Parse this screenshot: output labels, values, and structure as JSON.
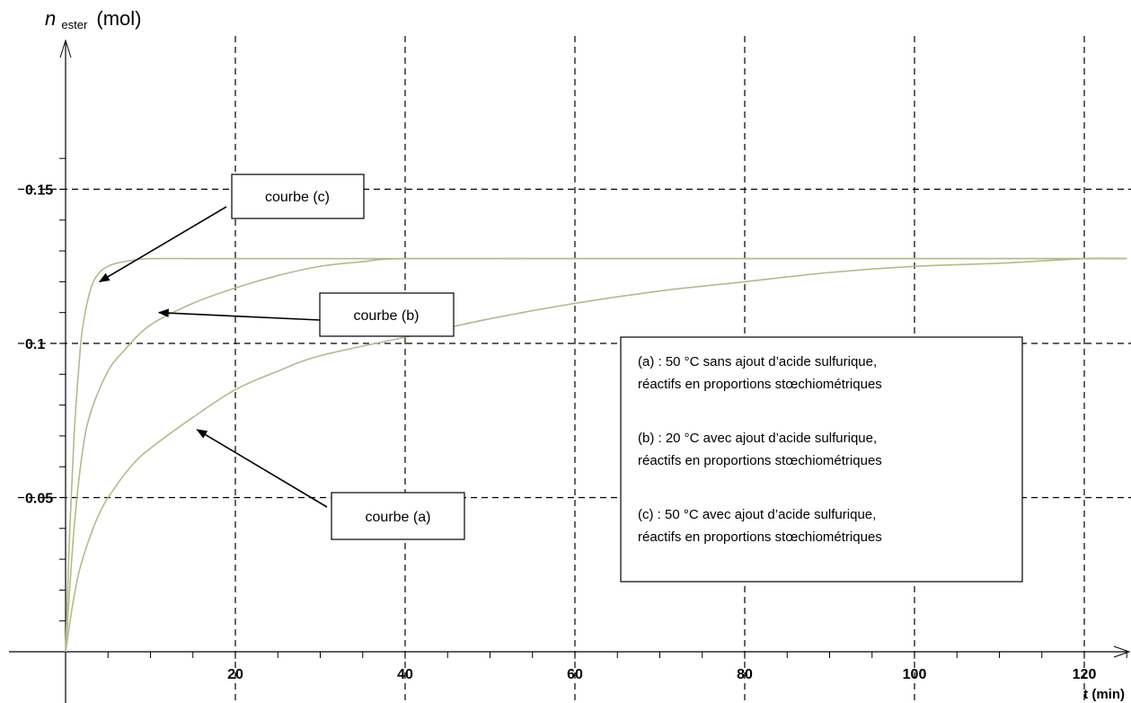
{
  "chart_data": {
    "type": "line",
    "title": "",
    "xlabel": "t (min)",
    "ylabel_main": "n",
    "ylabel_sub": "ester",
    "ylabel_unit": "(mol)",
    "xlim": [
      0,
      125
    ],
    "ylim": [
      0,
      0.17
    ],
    "x_ticks": [
      20,
      40,
      60,
      80,
      100,
      120
    ],
    "y_ticks": [
      0.05,
      0.1,
      0.15
    ],
    "x_tick_labels": [
      "20",
      "40",
      "60",
      "80",
      "100",
      "120"
    ],
    "y_tick_labels": [
      "0.05",
      "0.1",
      "0.15"
    ],
    "grid": true,
    "series": [
      {
        "name": "courbe (a)",
        "x": [
          0,
          1,
          2,
          4,
          6,
          8,
          10,
          15,
          20,
          25,
          30,
          40,
          50,
          60,
          70,
          80,
          90,
          100,
          110,
          120,
          125
        ],
        "y": [
          0,
          0.018,
          0.03,
          0.045,
          0.054,
          0.061,
          0.066,
          0.076,
          0.085,
          0.091,
          0.096,
          0.102,
          0.108,
          0.113,
          0.117,
          0.12,
          0.123,
          0.125,
          0.126,
          0.1275,
          0.1275
        ]
      },
      {
        "name": "courbe (b)",
        "x": [
          0,
          1,
          2,
          3,
          5,
          7,
          10,
          15,
          20,
          25,
          30,
          35,
          40,
          60,
          80,
          100,
          120,
          125
        ],
        "y": [
          0,
          0.04,
          0.065,
          0.078,
          0.091,
          0.098,
          0.106,
          0.113,
          0.118,
          0.122,
          0.125,
          0.1265,
          0.1275,
          0.1275,
          0.1275,
          0.1275,
          0.1275,
          0.1275
        ]
      },
      {
        "name": "courbe (c)",
        "x": [
          0,
          0.5,
          1,
          1.5,
          2,
          3,
          4,
          5,
          6,
          8,
          10,
          15,
          20,
          40,
          60,
          80,
          100,
          120,
          125
        ],
        "y": [
          0,
          0.04,
          0.07,
          0.09,
          0.105,
          0.118,
          0.123,
          0.125,
          0.126,
          0.127,
          0.1275,
          0.1275,
          0.1275,
          0.1275,
          0.1275,
          0.1275,
          0.1275,
          0.1275,
          0.1275
        ]
      }
    ],
    "annotations": [
      {
        "label": "courbe (c)",
        "points_to": [
          4,
          0.12
        ]
      },
      {
        "label": "courbe (b)",
        "points_to": [
          11,
          0.11
        ]
      },
      {
        "label": "courbe (a)",
        "points_to": [
          15.5,
          0.072
        ]
      }
    ],
    "legend": {
      "placement": "center-right",
      "lines": [
        "(a) : 50 °C sans ajout d’acide sulfurique,",
        "réactifs en proportions stœchiométriques",
        "(b) : 20 °C avec ajout d’acide sulfurique,",
        "réactifs en proportions stœchiométriques",
        "(c) : 50 °C avec ajout d’acide sulfurique,",
        "réactifs en proportions stœchiométriques"
      ]
    }
  }
}
